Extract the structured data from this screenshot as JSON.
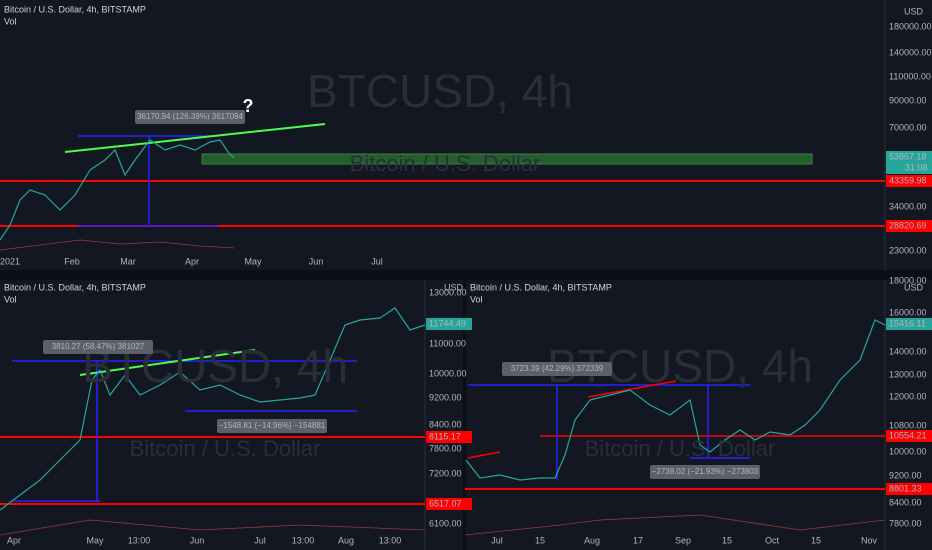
{
  "panels": [
    {
      "title": "Bitcoin / U.S. Dollar, 4h, BITSTAMP",
      "vol": "Vol",
      "watermark": "BTCUSD, 4h",
      "subtitle": "Bitcoin / U.S. Dollar",
      "currency": "USD",
      "price_labels": [
        "180000.00",
        "140000.00",
        "110000.00",
        "90000.00",
        "70000.00",
        "53867.18",
        "43359.98",
        "34000.00",
        "28820.69",
        "23000.00"
      ],
      "countdown": "31:08",
      "time_labels": [
        "2021",
        "Feb",
        "Mar",
        "Apr",
        "May",
        "Jun",
        "Jul"
      ],
      "annotations": [
        "36170.94 (126.39%) 3617094",
        "?"
      ]
    },
    {
      "title": "Bitcoin / U.S. Dollar, 4h, BITSTAMP",
      "vol": "Vol",
      "watermark": "BTCUSD, 4h",
      "subtitle": "Bitcoin / U.S. Dollar",
      "currency": "USD",
      "price_labels": [
        "13000.00",
        "11744.49",
        "11000.00",
        "10000.00",
        "9200.00",
        "8400.00",
        "8115.17",
        "7800.00",
        "7200.00",
        "6517.07",
        "6100.00"
      ],
      "time_labels": [
        "Apr",
        "May",
        "13:00",
        "Jun",
        "Jul",
        "13:00",
        "Aug",
        "13:00"
      ],
      "annotations": [
        "3810.27 (58.47%) 381027",
        "−1548.81 (−14.96%) −154881"
      ]
    },
    {
      "title": "Bitcoin / U.S. Dollar, 4h, BITSTAMP",
      "vol": "Vol",
      "watermark": "BTCUSD, 4h",
      "subtitle": "Bitcoin / U.S. Dollar",
      "currency": "USD",
      "price_labels": [
        "18000.00",
        "16000.00",
        "15416.11",
        "14000.00",
        "13000.00",
        "12000.00",
        "10800.00",
        "10554.21",
        "10000.00",
        "9200.00",
        "8801.33",
        "8400.00",
        "7800.00"
      ],
      "time_labels": [
        "Jul",
        "15",
        "Aug",
        "17",
        "Sep",
        "15",
        "Oct",
        "15",
        "Nov"
      ],
      "annotations": [
        "3723.39 (42.29%) 372339",
        "−2738.02 (−21.93%) −273803"
      ]
    }
  ]
}
